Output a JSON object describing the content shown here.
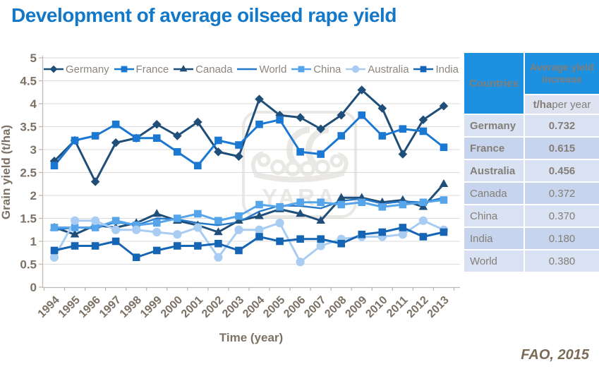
{
  "title": "Development of average oilseed rape yield",
  "source": "FAO, 2015",
  "watermark": "YARA",
  "colors": {
    "title_blue": "#1478C8",
    "table_header_blue": "#1E90E0",
    "axis_text": "#7C7164",
    "legend_text": "#8C8680",
    "source_text": "#7B6A56",
    "gridline": "#DBDBDB",
    "axis_line": "#BFBAB2",
    "row_light": "#D9E2F3",
    "row_dark": "#C7D4ED"
  },
  "chart_data": {
    "type": "line",
    "title": "",
    "xlabel": "Time (year)",
    "ylabel": "Grain yield (t/ha)",
    "ylim": [
      0,
      5
    ],
    "ytick_step": 0.5,
    "grid": true,
    "legend_position": "top",
    "x": [
      1994,
      1995,
      1996,
      1997,
      1998,
      1999,
      2000,
      2001,
      2002,
      2003,
      2004,
      2005,
      2006,
      2007,
      2008,
      2009,
      2010,
      2011,
      2012,
      2013
    ],
    "series": [
      {
        "name": "Germany",
        "marker": "diamond",
        "color": "#1F4E79",
        "values": [
          2.75,
          3.2,
          2.3,
          3.15,
          3.25,
          3.55,
          3.3,
          3.6,
          2.95,
          2.85,
          4.1,
          3.75,
          3.7,
          3.45,
          3.75,
          4.3,
          3.9,
          2.9,
          3.65,
          3.95
        ]
      },
      {
        "name": "France",
        "marker": "square",
        "color": "#1B78D2",
        "values": [
          2.65,
          3.2,
          3.3,
          3.55,
          3.25,
          3.25,
          2.95,
          2.65,
          3.2,
          3.1,
          3.55,
          3.65,
          2.95,
          2.9,
          3.3,
          3.75,
          3.3,
          3.45,
          3.4,
          3.05
        ]
      },
      {
        "name": "Canada",
        "marker": "triangle",
        "color": "#1F4E79",
        "values": [
          1.3,
          1.15,
          1.35,
          1.3,
          1.4,
          1.6,
          1.45,
          1.35,
          1.2,
          1.45,
          1.55,
          1.7,
          1.6,
          1.45,
          1.95,
          1.95,
          1.85,
          1.9,
          1.75,
          2.25
        ]
      },
      {
        "name": "World",
        "marker": "none",
        "color": "#2579C8",
        "values": [
          1.25,
          1.3,
          1.28,
          1.42,
          1.35,
          1.5,
          1.48,
          1.4,
          1.35,
          1.42,
          1.65,
          1.78,
          1.77,
          1.72,
          1.88,
          1.93,
          1.82,
          1.87,
          1.85,
          1.95
        ]
      },
      {
        "name": "China",
        "marker": "square",
        "color": "#56A5EB",
        "values": [
          1.3,
          1.3,
          1.3,
          1.45,
          1.35,
          1.4,
          1.5,
          1.6,
          1.45,
          1.55,
          1.8,
          1.75,
          1.85,
          1.85,
          1.8,
          1.85,
          1.75,
          1.8,
          1.85,
          1.9
        ]
      },
      {
        "name": "Australia",
        "marker": "circle",
        "color": "#A9CDF2",
        "values": [
          0.65,
          1.45,
          1.45,
          1.25,
          1.25,
          1.2,
          1.15,
          1.3,
          0.65,
          1.25,
          1.25,
          1.4,
          0.55,
          0.9,
          1.05,
          1.1,
          1.1,
          1.15,
          1.45,
          1.25
        ]
      },
      {
        "name": "India",
        "marker": "square",
        "color": "#1565B4",
        "values": [
          0.8,
          0.9,
          0.9,
          1.0,
          0.65,
          0.8,
          0.9,
          0.9,
          0.95,
          0.8,
          1.1,
          1.0,
          1.05,
          1.05,
          0.95,
          1.15,
          1.2,
          1.3,
          1.1,
          1.2
        ]
      }
    ]
  },
  "table": {
    "col1_header": "Countries",
    "col2_header": "Average yield increase",
    "unit_bold": "t/ha",
    "unit_rest": " per year",
    "rows": [
      {
        "country": "Germany",
        "value": "0.732",
        "bold": true
      },
      {
        "country": "France",
        "value": "0.615",
        "bold": true
      },
      {
        "country": "Australia",
        "value": "0.456",
        "bold": true
      },
      {
        "country": "Canada",
        "value": "0.372",
        "bold": false
      },
      {
        "country": "China",
        "value": "0.370",
        "bold": false
      },
      {
        "country": "India",
        "value": "0.180",
        "bold": false
      },
      {
        "country": "World",
        "value": "0.380",
        "bold": false
      }
    ]
  }
}
